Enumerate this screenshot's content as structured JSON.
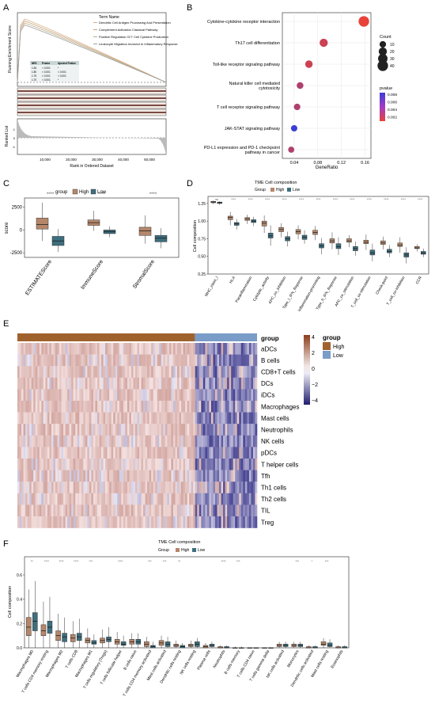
{
  "panels": {
    "A": {
      "letter": "A",
      "ylabel_top": "Running Enrichment Score",
      "ylabel_bottom": "Ranked List",
      "xlabel": "Rank in Ordered Dataset",
      "xticks": [
        "10,000",
        "20,000",
        "30,000",
        "40,000",
        "50,000"
      ],
      "legend_title": "Term Name",
      "terms": [
        "Dendritic Cell Antigen Processing And Presentation",
        "Complement Activation Classical Pathway",
        "Positive Regulation Of T Cell Cytokine Production",
        "Leukocyte Migration Involved In Inflammatory Response"
      ],
      "term_colors": [
        "#d9b38c",
        "#c9a27e",
        "#b8b08a",
        "#a0a0a0"
      ],
      "table_header": [
        "NES",
        "Pvalue",
        "Ajusted Pvalue"
      ],
      "table_rows": [
        [
          "1.84",
          "< 0.001",
          "*"
        ],
        [
          "1.80",
          "< 0.001",
          "< 0.001"
        ],
        [
          "1.75",
          "< 0.001",
          "< 0.001"
        ],
        [
          "1.70",
          "< 0.001",
          "*"
        ]
      ],
      "ranked_yticks": [
        "1",
        "0",
        "-1"
      ]
    },
    "B": {
      "letter": "B",
      "xlabel": "GeneRatio",
      "xticks": [
        "0.04",
        "0.08",
        "0.12",
        "0.16"
      ],
      "count_title": "Count",
      "count_values": [
        "10",
        "20",
        "30",
        "40"
      ],
      "pvalue_title": "pvalue",
      "pvalue_ticks": [
        "0.008",
        "0.006",
        "0.004",
        "0.002"
      ]
    },
    "C": {
      "letter": "C",
      "legend_label": "group",
      "legend_items": [
        "High",
        "Low"
      ],
      "ylabel": "score",
      "yticks": [
        "2500",
        "0",
        "-2500"
      ],
      "signif": [
        "****",
        "****",
        "****"
      ]
    },
    "D": {
      "letter": "D",
      "title": "TME Cell composition",
      "legend_label": "Group",
      "legend_items": [
        "High",
        "Low"
      ],
      "ylabel": "Cell composition",
      "yticks": [
        "1.25",
        "1.00",
        "0.75",
        "0.50",
        "0.25"
      ]
    },
    "E": {
      "letter": "E",
      "group_label": "group",
      "legend_title": "group",
      "legend_items": [
        "High",
        "Low"
      ],
      "colorbar_ticks": [
        "4",
        "2",
        "0",
        "−2",
        "−4"
      ],
      "rows": [
        "aDCs",
        "B cells",
        "CD8+T cells",
        "DCs",
        "iDCs",
        "Macrophages",
        "Mast cells",
        "Neutrophils",
        "NK cells",
        "pDCs",
        "T helper cells",
        "Tfh",
        "Th1 cells",
        "Th2 cells",
        "TIL",
        "Treg"
      ]
    },
    "F": {
      "letter": "F",
      "title": "TME Cell composition",
      "legend_label": "Group",
      "legend_items": [
        "High",
        "Low"
      ],
      "ylabel": "Cell composition",
      "yticks": [
        "0.6",
        "0.4",
        "0.2",
        "0.0"
      ]
    }
  },
  "colors": {
    "high": "#b5876a",
    "low": "#3e6e7e",
    "heat_high": "#b0522c",
    "heat_low": "#2b2a7a",
    "bar_high": "#a0622d",
    "bar_low": "#7a9cc8"
  },
  "chart_data": [
    {
      "panel": "B",
      "type": "scatter",
      "title": "",
      "xlabel": "GeneRatio",
      "ylabel": "",
      "xlim": [
        0.02,
        0.17
      ],
      "categories": [
        "Cytokine-cytokine receptor interaction",
        "Th17 cell differentiation",
        "Toll-like receptor signaling pathway",
        "Natural killer cell mediated cytotoxicity",
        "T cell receptor signaling pathway",
        "JAK-STAT signaling pathway",
        "PD-L1 expression and PD-1 checkpoint pathway in cancer"
      ],
      "gene_ratio": [
        0.158,
        0.09,
        0.065,
        0.05,
        0.045,
        0.04,
        0.035
      ],
      "count": [
        40,
        20,
        15,
        11,
        10,
        9,
        8
      ],
      "pvalue": [
        0.002,
        0.003,
        0.003,
        0.004,
        0.004,
        0.008,
        0.004
      ]
    },
    {
      "panel": "C",
      "type": "box",
      "categories": [
        "ESTIMATEScore",
        "ImmuneScore",
        "StromalScore"
      ],
      "ylim": [
        -3000,
        3500
      ],
      "series": [
        {
          "name": "High",
          "q1": [
            100,
            500,
            -600
          ],
          "median": [
            600,
            800,
            -100
          ],
          "q3": [
            1300,
            1100,
            300
          ],
          "whisker_low": [
            -1200,
            -100,
            -1500
          ],
          "whisker_high": [
            3000,
            2100,
            1600
          ]
        },
        {
          "name": "Low",
          "q1": [
            -1700,
            -400,
            -1300
          ],
          "median": [
            -1200,
            -200,
            -900
          ],
          "q3": [
            -700,
            0,
            -600
          ],
          "whisker_low": [
            -2400,
            -800,
            -2000
          ],
          "whisker_high": [
            100,
            400,
            200
          ]
        }
      ]
    },
    {
      "panel": "D",
      "type": "box",
      "categories": [
        "MHC_class_I",
        "HLA",
        "Parainflammation",
        "Cytolytic_activity",
        "APC_co_inhibition",
        "Type_I_IFN_Reponse",
        "Inflammation-promoting",
        "Type_II_IFN_Reponse",
        "APC_co_stimulation",
        "T_cell_co-stimulation",
        "Check-point",
        "T_cell_co-inhibition",
        "CCR"
      ],
      "ylim": [
        0.25,
        1.35
      ],
      "series": [
        {
          "name": "High",
          "q1": [
            1.26,
            1.02,
            1.01,
            0.93,
            0.85,
            0.82,
            0.81,
            0.69,
            0.7,
            0.68,
            0.67,
            0.64,
            0.61
          ],
          "median": [
            1.27,
            1.05,
            1.03,
            0.97,
            0.88,
            0.85,
            0.84,
            0.72,
            0.72,
            0.7,
            0.69,
            0.66,
            0.62
          ],
          "q3": [
            1.28,
            1.07,
            1.05,
            1.0,
            0.91,
            0.88,
            0.87,
            0.75,
            0.75,
            0.73,
            0.72,
            0.69,
            0.64
          ],
          "whisker_low": [
            1.24,
            0.94,
            0.96,
            0.83,
            0.77,
            0.74,
            0.73,
            0.6,
            0.63,
            0.59,
            0.6,
            0.55,
            0.57
          ],
          "whisker_high": [
            1.29,
            1.13,
            1.09,
            1.08,
            0.97,
            0.94,
            0.93,
            0.84,
            0.8,
            0.81,
            0.78,
            0.77,
            0.67
          ]
        },
        {
          "name": "Low",
          "q1": [
            1.25,
            0.94,
            0.98,
            0.76,
            0.72,
            0.74,
            0.62,
            0.61,
            0.58,
            0.52,
            0.55,
            0.49,
            0.53
          ],
          "median": [
            1.26,
            0.96,
            1.0,
            0.79,
            0.75,
            0.77,
            0.65,
            0.64,
            0.61,
            0.55,
            0.57,
            0.52,
            0.55
          ],
          "q3": [
            1.27,
            0.98,
            1.02,
            0.83,
            0.78,
            0.8,
            0.68,
            0.68,
            0.64,
            0.59,
            0.6,
            0.55,
            0.57
          ],
          "whisker_low": [
            1.23,
            0.88,
            0.93,
            0.65,
            0.64,
            0.68,
            0.53,
            0.52,
            0.51,
            0.43,
            0.49,
            0.4,
            0.49
          ],
          "whisker_high": [
            1.28,
            1.03,
            1.06,
            0.94,
            0.85,
            0.87,
            0.76,
            0.77,
            0.71,
            0.68,
            0.66,
            0.63,
            0.61
          ]
        }
      ],
      "signif": [
        "ns",
        "****",
        "****",
        "****",
        "****",
        "****",
        "****",
        "****",
        "****",
        "****",
        "****",
        "****",
        "****"
      ]
    },
    {
      "panel": "E",
      "type": "heatmap",
      "rows": [
        "aDCs",
        "B cells",
        "CD8+T cells",
        "DCs",
        "iDCs",
        "Macrophages",
        "Mast cells",
        "Neutrophils",
        "NK cells",
        "pDCs",
        "T helper cells",
        "Tfh",
        "Th1 cells",
        "Th2 cells",
        "TIL",
        "Treg"
      ],
      "column_groups": [
        "High",
        "Low"
      ],
      "high_fraction": 0.74,
      "value_range": [
        -4,
        4
      ]
    },
    {
      "panel": "F",
      "type": "box",
      "categories": [
        "Macrophages M0",
        "T cells CD4 memory resting",
        "Macrophages M2",
        "T cells CD8",
        "Macrophages M1",
        "T cells regulatory (Tregs)",
        "T cells follicular helper",
        "B cells naive",
        "T cells CD4 memory activated",
        "Mast cells activated",
        "Dendritic cells resting",
        "NK cells resting",
        "Plasma cells",
        "Neutrophils",
        "B cells memory",
        "T cells CD4 naive",
        "T cells gamma delta",
        "NK cells activated",
        "Monocytes",
        "Dendritic cells activated",
        "Mast cells resting",
        "Eosinophils"
      ],
      "ylim": [
        0,
        0.75
      ],
      "series": [
        {
          "name": "High",
          "q1": [
            0.1,
            0.1,
            0.06,
            0.05,
            0.04,
            0.04,
            0.03,
            0.03,
            0.01,
            0.02,
            0.01,
            0.01,
            0.0,
            0.0,
            0.0,
            0.0,
            0.0,
            0.01,
            0.01,
            0.0,
            0.02,
            0.0
          ],
          "median": [
            0.17,
            0.14,
            0.1,
            0.08,
            0.06,
            0.06,
            0.05,
            0.05,
            0.03,
            0.04,
            0.02,
            0.02,
            0.01,
            0.0,
            0.0,
            0.0,
            0.0,
            0.02,
            0.02,
            0.0,
            0.03,
            0.0
          ],
          "q3": [
            0.25,
            0.19,
            0.14,
            0.11,
            0.08,
            0.08,
            0.07,
            0.07,
            0.05,
            0.06,
            0.03,
            0.03,
            0.02,
            0.01,
            0.0,
            0.0,
            0.0,
            0.03,
            0.03,
            0.01,
            0.05,
            0.01
          ],
          "whisker_low": [
            0.0,
            0.0,
            0.0,
            0.0,
            0.0,
            0.0,
            0.0,
            0.0,
            0.0,
            0.0,
            0.0,
            0.0,
            0.0,
            0.0,
            0.0,
            0.0,
            0.0,
            0.0,
            0.0,
            0.0,
            0.0,
            0.0
          ],
          "whisker_high": [
            0.48,
            0.38,
            0.28,
            0.22,
            0.16,
            0.15,
            0.13,
            0.12,
            0.09,
            0.1,
            0.06,
            0.06,
            0.04,
            0.02,
            0.01,
            0.0,
            0.0,
            0.05,
            0.05,
            0.02,
            0.08,
            0.02
          ]
        },
        {
          "name": "Low",
          "q1": [
            0.14,
            0.12,
            0.05,
            0.06,
            0.03,
            0.05,
            0.02,
            0.03,
            0.0,
            0.01,
            0.0,
            0.01,
            0.01,
            0.0,
            0.0,
            0.0,
            0.0,
            0.01,
            0.01,
            0.0,
            0.01,
            0.0
          ],
          "median": [
            0.22,
            0.17,
            0.09,
            0.09,
            0.04,
            0.07,
            0.03,
            0.05,
            0.01,
            0.03,
            0.01,
            0.03,
            0.02,
            0.0,
            0.0,
            0.0,
            0.0,
            0.02,
            0.02,
            0.0,
            0.02,
            0.0
          ],
          "q3": [
            0.29,
            0.22,
            0.12,
            0.12,
            0.06,
            0.09,
            0.05,
            0.07,
            0.02,
            0.05,
            0.02,
            0.05,
            0.03,
            0.01,
            0.0,
            0.0,
            0.0,
            0.03,
            0.03,
            0.01,
            0.04,
            0.01
          ],
          "whisker_low": [
            0.0,
            0.0,
            0.0,
            0.0,
            0.0,
            0.0,
            0.0,
            0.0,
            0.0,
            0.0,
            0.0,
            0.0,
            0.0,
            0.0,
            0.0,
            0.0,
            0.0,
            0.0,
            0.0,
            0.0,
            0.0,
            0.0
          ],
          "whisker_high": [
            0.55,
            0.42,
            0.25,
            0.24,
            0.11,
            0.17,
            0.1,
            0.12,
            0.05,
            0.09,
            0.04,
            0.08,
            0.05,
            0.02,
            0.01,
            0.0,
            0.0,
            0.05,
            0.05,
            0.02,
            0.07,
            0.02
          ]
        }
      ],
      "signif": [
        "**",
        "****",
        "****",
        "****",
        "***",
        "",
        "****",
        "",
        "***",
        "***",
        "**",
        "",
        "",
        "****",
        "***",
        "",
        "",
        "",
        "***",
        "*",
        "***",
        ""
      ]
    }
  ]
}
